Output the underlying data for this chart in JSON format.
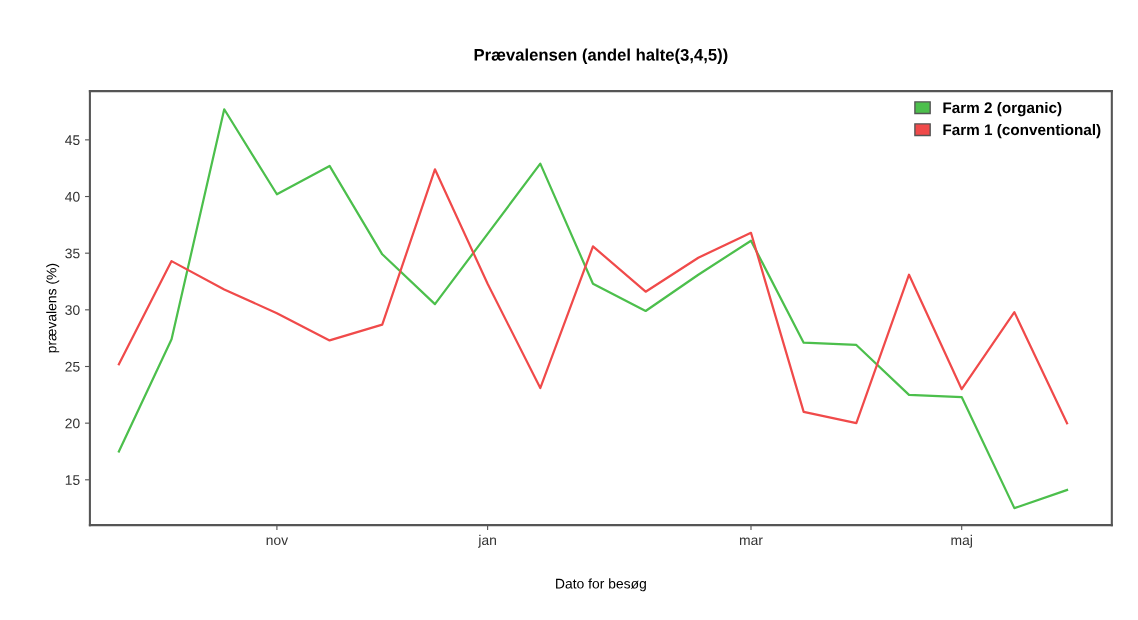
{
  "chart_data": {
    "type": "line",
    "title": "Prævalensen (andel halte(3,4,5))",
    "xlabel": "Dato for besøg",
    "ylabel": "prævalens (%)",
    "categories": [
      null,
      null,
      null,
      "nov",
      null,
      null,
      null,
      "jan",
      null,
      null,
      null,
      null,
      "mar",
      null,
      null,
      null,
      "maj",
      null,
      null
    ],
    "ylim": [
      11,
      49.3
    ],
    "yticks": [
      15,
      20,
      25,
      30,
      35,
      40,
      45
    ],
    "grid": false,
    "legend": "top right",
    "marker": "none",
    "line_style": "solid",
    "series": [
      {
        "name": "Farm 2 (organic)",
        "color": "#4cbf4c",
        "values": [
          17.5,
          27.4,
          47.7,
          40.2,
          42.7,
          34.9,
          30.5,
          36.7,
          42.9,
          32.3,
          29.9,
          33.1,
          36.1,
          27.1,
          26.9,
          22.5,
          22.3,
          12.5,
          14.1
        ]
      },
      {
        "name": "Farm 1 (conventional)",
        "color": "#f04a4a",
        "values": [
          25.2,
          34.3,
          31.8,
          29.7,
          27.3,
          28.7,
          42.4,
          32.3,
          23.1,
          35.6,
          31.6,
          34.6,
          36.8,
          21.0,
          20.0,
          33.1,
          23.0,
          29.8,
          20.0
        ]
      }
    ]
  }
}
